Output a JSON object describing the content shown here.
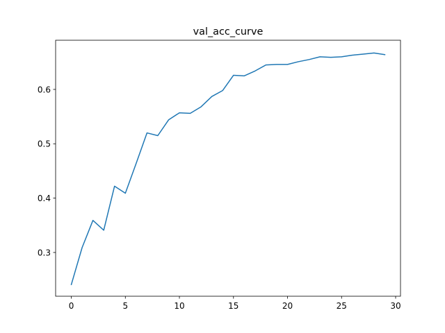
{
  "chart_data": {
    "type": "line",
    "title": "val_acc_curve",
    "xlabel": "",
    "ylabel": "",
    "xlim": [
      -1.45,
      30.45
    ],
    "ylim": [
      0.2195,
      0.6905
    ],
    "xticks": [
      0,
      5,
      10,
      15,
      20,
      25,
      30
    ],
    "xtick_labels": [
      "0",
      "5",
      "10",
      "15",
      "20",
      "25",
      "30"
    ],
    "yticks": [
      0.3,
      0.4,
      0.5,
      0.6
    ],
    "ytick_labels": [
      "0.3",
      "0.4",
      "0.5",
      "0.6"
    ],
    "grid": false,
    "legend": "none",
    "series": [
      {
        "color": "#1f77b4",
        "x": [
          0,
          1,
          2,
          3,
          4,
          5,
          6,
          7,
          8,
          9,
          10,
          11,
          12,
          13,
          14,
          15,
          16,
          17,
          18,
          19,
          20,
          21,
          22,
          23,
          24,
          25,
          26,
          27,
          28,
          29
        ],
        "y": [
          0.241,
          0.309,
          0.359,
          0.341,
          0.422,
          0.409,
          0.464,
          0.52,
          0.515,
          0.544,
          0.557,
          0.556,
          0.568,
          0.587,
          0.598,
          0.626,
          0.625,
          0.634,
          0.645,
          0.646,
          0.646,
          0.651,
          0.655,
          0.66,
          0.659,
          0.66,
          0.663,
          0.665,
          0.667,
          0.664
        ]
      }
    ]
  }
}
